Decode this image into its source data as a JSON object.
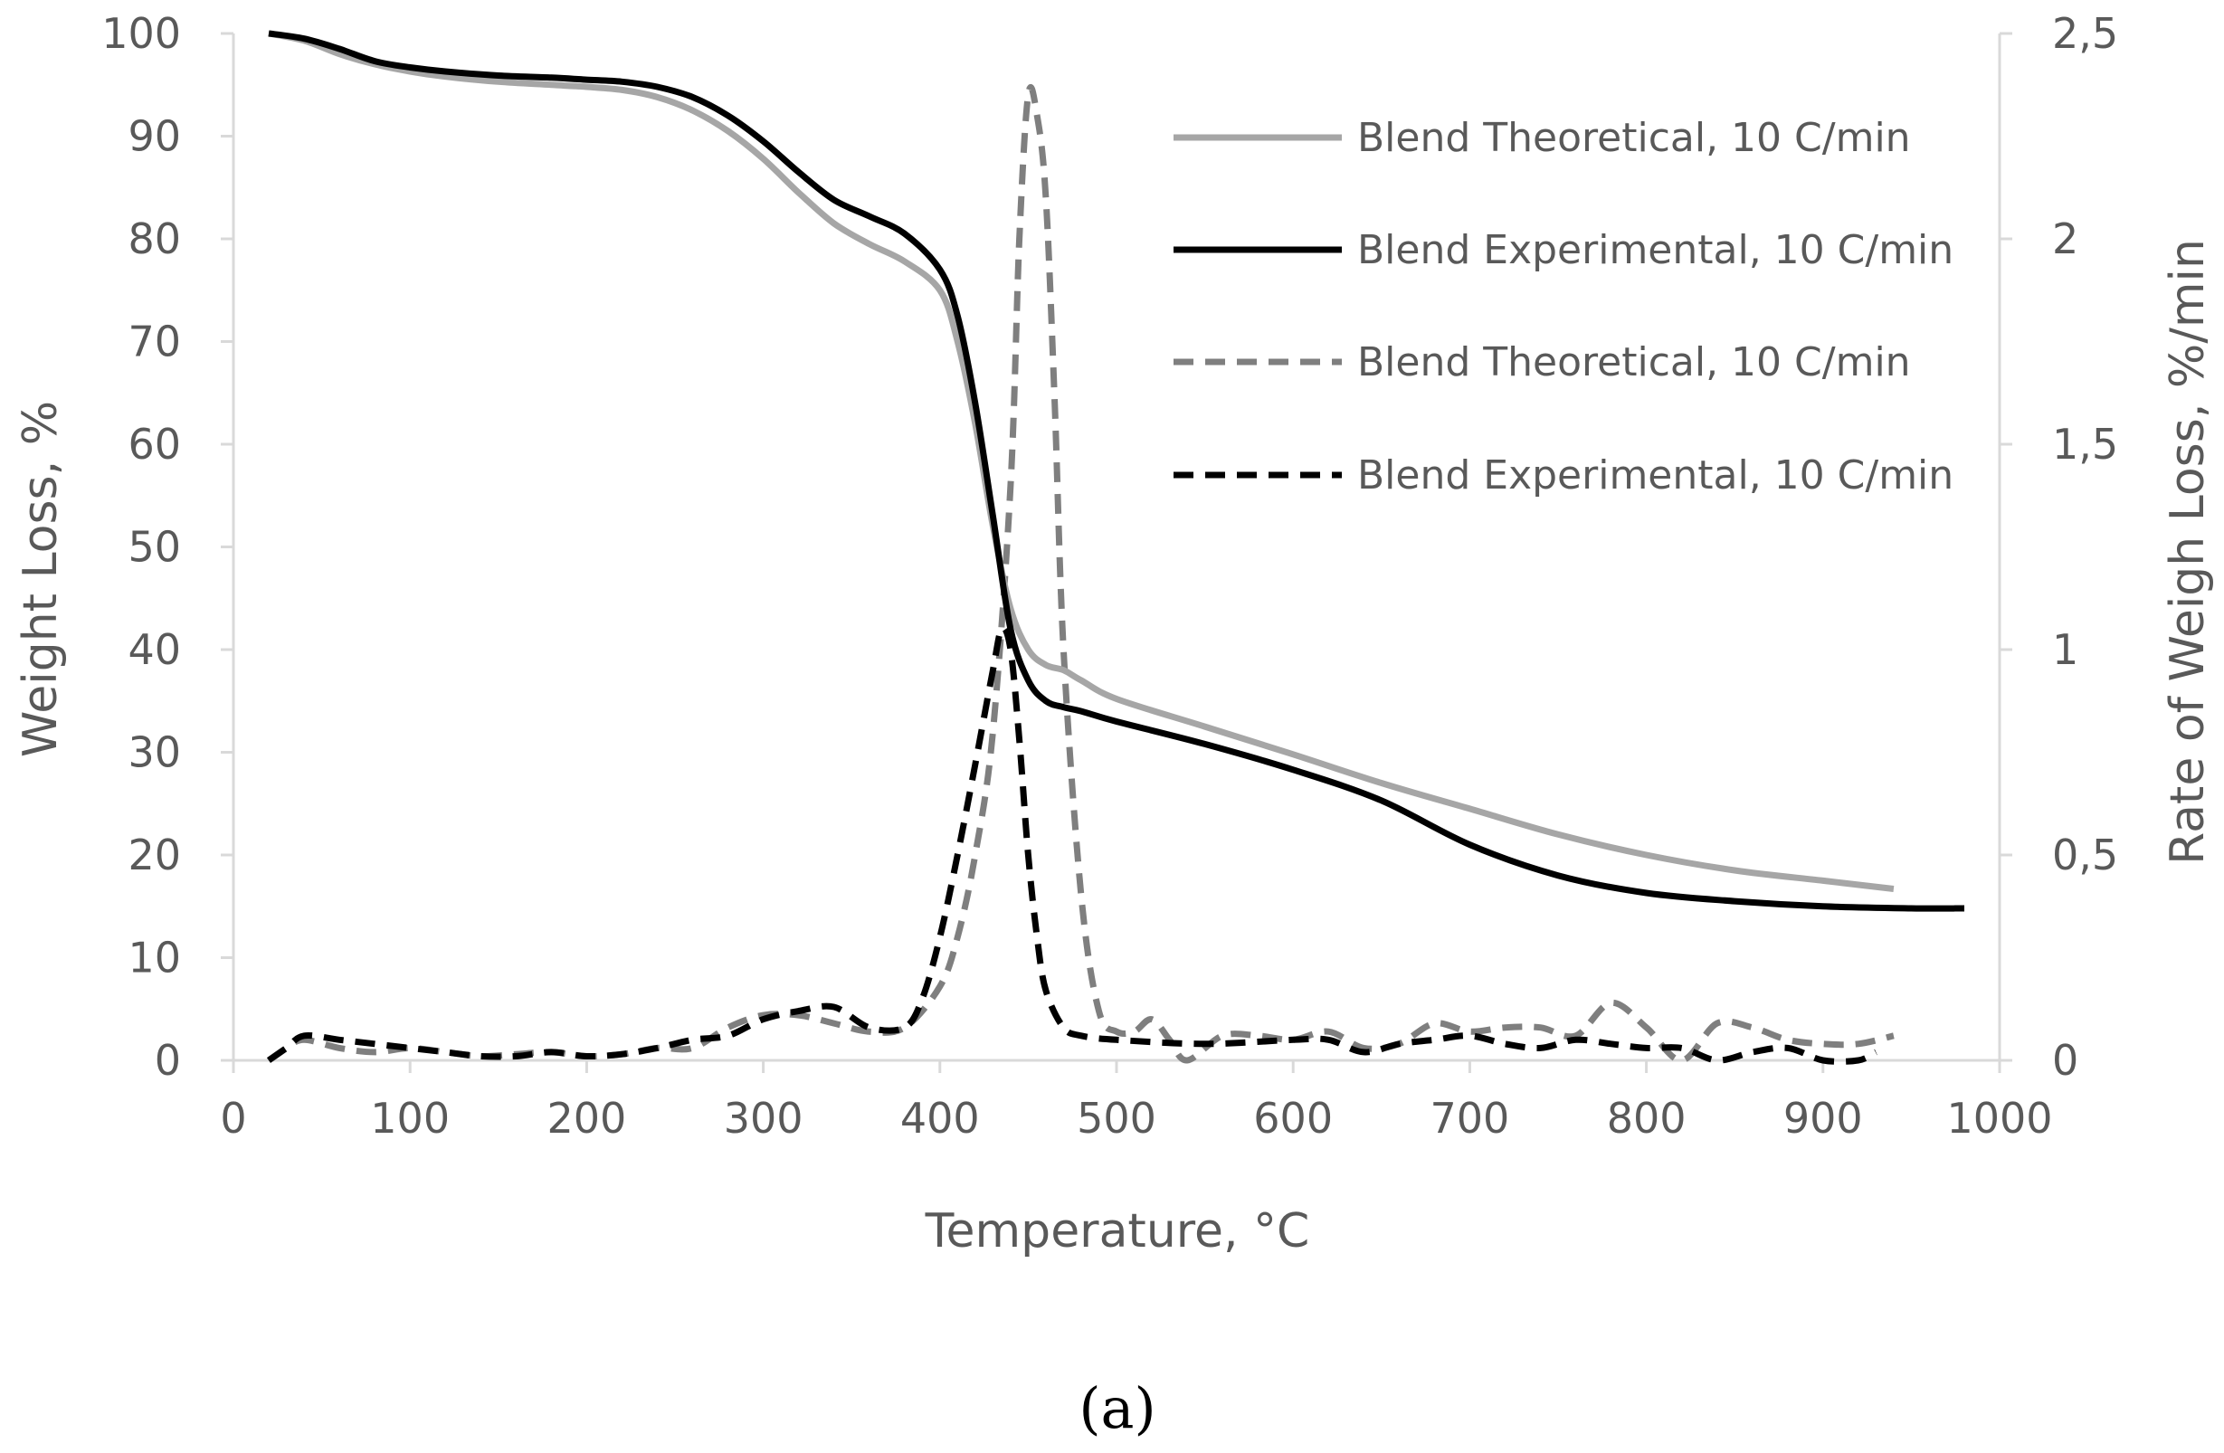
{
  "chart_data": {
    "type": "line",
    "caption": "(a)",
    "xlabel": "Temperature, °C",
    "ylabel_left": "Weight Loss, %",
    "ylabel_right": "Rate of Weigh Loss, %/min",
    "xlim": [
      0,
      1000
    ],
    "ylim_left": [
      0,
      100
    ],
    "ylim_right": [
      0,
      2.5
    ],
    "x_ticks": [
      "0",
      "100",
      "200",
      "300",
      "400",
      "500",
      "600",
      "700",
      "800",
      "900",
      "1000"
    ],
    "y_ticks_left": [
      "0",
      "10",
      "20",
      "30",
      "40",
      "50",
      "60",
      "70",
      "80",
      "90",
      "100"
    ],
    "y_ticks_right": [
      "0",
      "0,5",
      "1",
      "1,5",
      "2",
      "2,5"
    ],
    "legend_position": "top-right",
    "series": [
      {
        "name": "Blend Theoretical, 10 C/min",
        "axis": "left",
        "style": "solid",
        "color": "#a6a6a6",
        "x": [
          20,
          40,
          60,
          80,
          100,
          120,
          150,
          180,
          200,
          220,
          240,
          260,
          280,
          300,
          320,
          340,
          360,
          380,
          400,
          410,
          420,
          430,
          440,
          450,
          460,
          470,
          480,
          500,
          550,
          600,
          650,
          700,
          750,
          800,
          850,
          900,
          940
        ],
        "y": [
          100,
          99.3,
          98,
          97,
          96.3,
          95.8,
          95.3,
          95,
          94.8,
          94.5,
          93.8,
          92.5,
          90.5,
          87.8,
          84.5,
          81.5,
          79.5,
          77.8,
          75,
          70,
          62,
          52,
          44,
          40,
          38.5,
          38,
          37,
          35.2,
          32.5,
          29.8,
          27,
          24.5,
          22,
          20,
          18.5,
          17.5,
          16.7
        ]
      },
      {
        "name": "Blend Experimental, 10 C/min",
        "axis": "left",
        "style": "solid",
        "color": "#000000",
        "x": [
          20,
          40,
          60,
          80,
          100,
          120,
          150,
          180,
          200,
          220,
          240,
          260,
          280,
          300,
          320,
          340,
          360,
          380,
          400,
          410,
          420,
          430,
          440,
          450,
          460,
          470,
          480,
          500,
          550,
          600,
          650,
          700,
          750,
          800,
          850,
          900,
          950,
          980
        ],
        "y": [
          100,
          99.5,
          98.5,
          97.3,
          96.7,
          96.3,
          95.9,
          95.7,
          95.5,
          95.3,
          94.8,
          93.8,
          92,
          89.5,
          86.5,
          83.8,
          82.2,
          80.5,
          77,
          72.5,
          64,
          53,
          42,
          37,
          35,
          34.4,
          34,
          33,
          30.8,
          28.3,
          25.3,
          21,
          18,
          16.3,
          15.5,
          15,
          14.8,
          14.8
        ]
      },
      {
        "name": "Blend Theoretical, 10 C/min",
        "axis": "right",
        "style": "dashed",
        "color": "#7f7f7f",
        "x": [
          20,
          30,
          40,
          60,
          80,
          100,
          120,
          140,
          160,
          180,
          200,
          220,
          240,
          260,
          280,
          300,
          320,
          340,
          360,
          380,
          400,
          410,
          420,
          430,
          440,
          445,
          450,
          455,
          460,
          465,
          470,
          480,
          490,
          500,
          510,
          520,
          530,
          540,
          560,
          580,
          600,
          620,
          640,
          660,
          680,
          700,
          720,
          740,
          760,
          780,
          800,
          820,
          840,
          860,
          880,
          900,
          920,
          940
        ],
        "y": [
          0,
          0.03,
          0.05,
          0.03,
          0.02,
          0.03,
          0.02,
          0.01,
          0.015,
          0.02,
          0.01,
          0.015,
          0.03,
          0.03,
          0.08,
          0.11,
          0.11,
          0.09,
          0.07,
          0.08,
          0.18,
          0.3,
          0.5,
          0.8,
          1.4,
          2.0,
          2.35,
          2.3,
          2.1,
          1.6,
          1.0,
          0.4,
          0.12,
          0.07,
          0.07,
          0.1,
          0.05,
          0.0,
          0.06,
          0.06,
          0.05,
          0.07,
          0.03,
          0.04,
          0.09,
          0.07,
          0.08,
          0.08,
          0.06,
          0.14,
          0.08,
          0.0,
          0.09,
          0.08,
          0.05,
          0.04,
          0.04,
          0.06
        ]
      },
      {
        "name": "Blend Experimental, 10 C/min",
        "axis": "right",
        "style": "dashed",
        "color": "#000000",
        "x": [
          20,
          30,
          40,
          60,
          80,
          100,
          120,
          140,
          160,
          180,
          200,
          220,
          240,
          260,
          280,
          300,
          320,
          340,
          360,
          380,
          390,
          400,
          410,
          420,
          430,
          435,
          440,
          445,
          450,
          455,
          460,
          470,
          480,
          500,
          550,
          600,
          620,
          640,
          660,
          680,
          700,
          720,
          740,
          760,
          780,
          800,
          820,
          840,
          860,
          880,
          900,
          920,
          930
        ],
        "y": [
          0,
          0.03,
          0.06,
          0.05,
          0.04,
          0.03,
          0.02,
          0.01,
          0.01,
          0.02,
          0.01,
          0.015,
          0.03,
          0.05,
          0.06,
          0.1,
          0.12,
          0.13,
          0.08,
          0.08,
          0.15,
          0.3,
          0.5,
          0.72,
          0.95,
          1.05,
          1.0,
          0.78,
          0.5,
          0.3,
          0.17,
          0.08,
          0.06,
          0.05,
          0.04,
          0.05,
          0.05,
          0.02,
          0.04,
          0.05,
          0.06,
          0.04,
          0.03,
          0.05,
          0.04,
          0.03,
          0.03,
          0.0,
          0.02,
          0.03,
          0.0,
          0.0,
          0.02
        ]
      }
    ]
  }
}
